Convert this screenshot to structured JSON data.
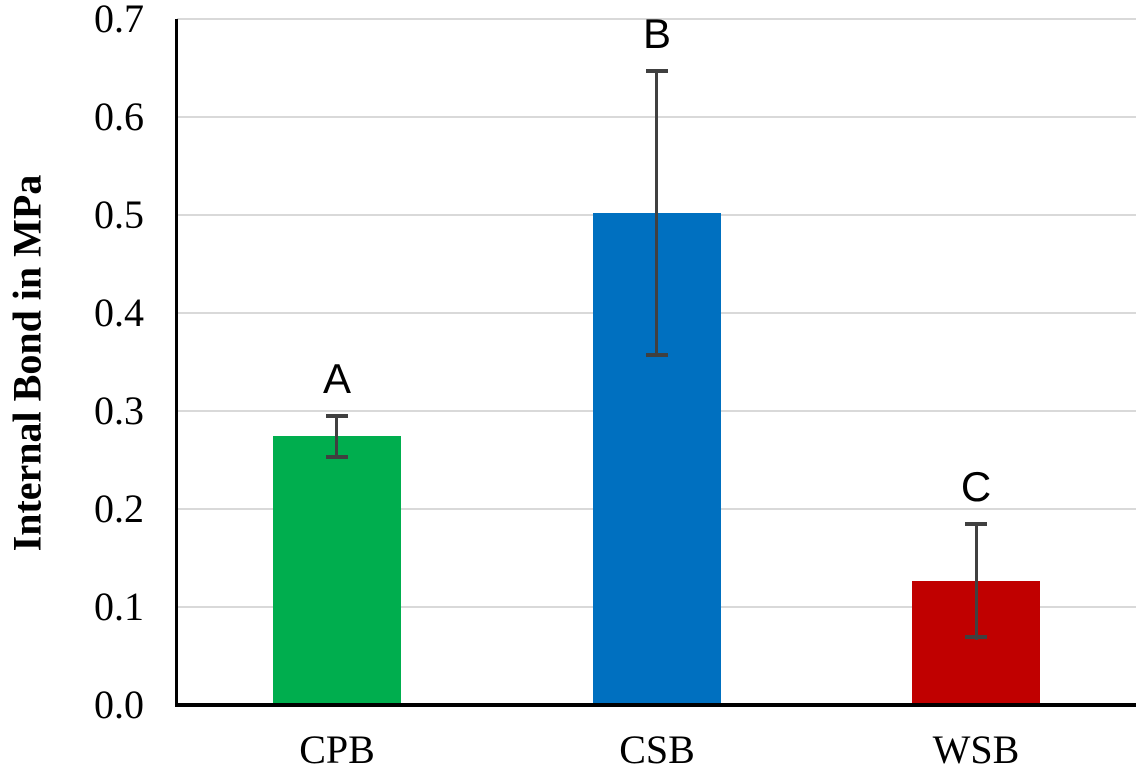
{
  "chart_data": {
    "type": "bar",
    "title": "",
    "xlabel": "",
    "ylabel": "Internal Bond in MPa",
    "ylim": [
      0.0,
      0.7
    ],
    "ytick_step": 0.1,
    "ytick_labels": [
      "0.7",
      "0.6",
      "0.5",
      "0.4",
      "0.3",
      "0.2",
      "0.1",
      "0.0"
    ],
    "grid": "horizontal",
    "legend_position": "none",
    "categories": [
      "CPB",
      "CSB",
      "WSB"
    ],
    "series": [
      {
        "name": "Internal Bond",
        "values": [
          0.274,
          0.502,
          0.127
        ],
        "error_bars": [
          0.023,
          0.147,
          0.06
        ],
        "significance_letters": [
          "A",
          "B",
          "C"
        ]
      }
    ],
    "colors": {
      "bar_fills": [
        "#00AE4E",
        "#0070C0",
        "#C00000"
      ],
      "error_bar": "#404040",
      "gridline": "#D9D9D9",
      "axis": "#000000",
      "text": "#000000"
    }
  }
}
